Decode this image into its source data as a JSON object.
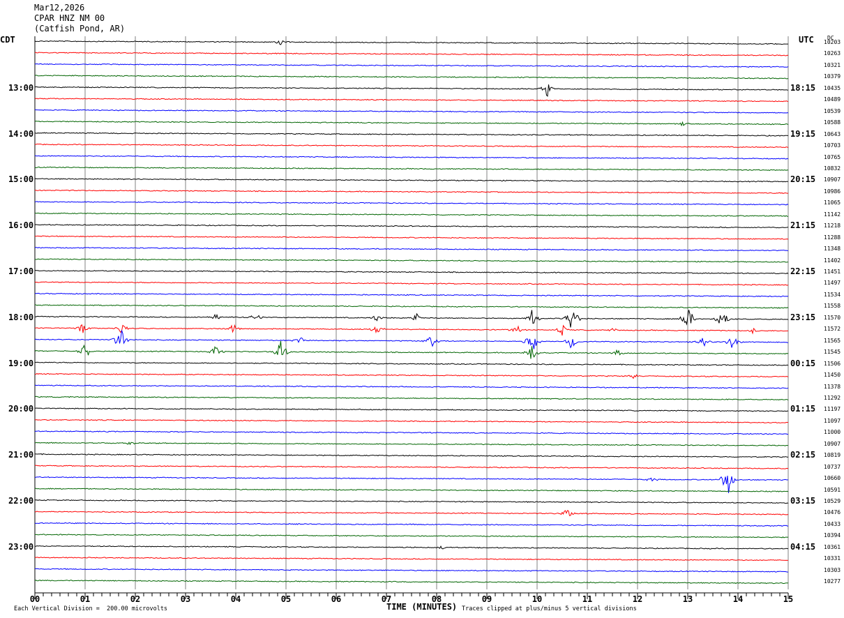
{
  "header": {
    "date": "Mar12,2026",
    "station": "CPAR HNZ NM 00",
    "location": "(Catfish Pond, AR)"
  },
  "left_tz": "CDT",
  "right_tz": "UTC",
  "dc_label": "DC",
  "footer": {
    "vertical_division": "Each Vertical Division =  200.00 microvolts",
    "clip_note": "Traces clipped at plus/minus 5 vertical divisions",
    "xlabel": "TIME (MINUTES)"
  },
  "colors": {
    "black": "#000000",
    "red": "#ff0000",
    "blue": "#0000ff",
    "green": "#006400",
    "grid": "#808080"
  },
  "chart_data": {
    "type": "line",
    "xlabel": "TIME (MINUTES)",
    "xlim": [
      0,
      15
    ],
    "x_ticks": [
      "00",
      "01",
      "02",
      "03",
      "04",
      "05",
      "06",
      "07",
      "08",
      "09",
      "10",
      "11",
      "12",
      "13",
      "14",
      "15"
    ],
    "trace_interval_minutes": 15,
    "trace_color_cycle": [
      "black",
      "red",
      "blue",
      "green"
    ],
    "left_hour_labels": [
      {
        "row": 4,
        "label": "13:00"
      },
      {
        "row": 8,
        "label": "14:00"
      },
      {
        "row": 12,
        "label": "15:00"
      },
      {
        "row": 16,
        "label": "16:00"
      },
      {
        "row": 20,
        "label": "17:00"
      },
      {
        "row": 24,
        "label": "18:00"
      },
      {
        "row": 28,
        "label": "19:00"
      },
      {
        "row": 32,
        "label": "20:00"
      },
      {
        "row": 36,
        "label": "21:00"
      },
      {
        "row": 40,
        "label": "22:00"
      },
      {
        "row": 44,
        "label": "23:00"
      }
    ],
    "right_hour_labels": [
      {
        "row": 4,
        "label": "18:15"
      },
      {
        "row": 8,
        "label": "19:15"
      },
      {
        "row": 12,
        "label": "20:15"
      },
      {
        "row": 16,
        "label": "21:15"
      },
      {
        "row": 20,
        "label": "22:15"
      },
      {
        "row": 24,
        "label": "23:15"
      },
      {
        "row": 28,
        "label": "00:15"
      },
      {
        "row": 32,
        "label": "01:15"
      },
      {
        "row": 36,
        "label": "02:15"
      },
      {
        "row": 40,
        "label": "03:15"
      },
      {
        "row": 44,
        "label": "04:15"
      }
    ],
    "dc_offsets": [
      "10203",
      "10263",
      "10321",
      "10379",
      "10435",
      "10489",
      "10539",
      "10588",
      "10643",
      "10703",
      "10765",
      "10832",
      "10907",
      "10986",
      "11065",
      "11142",
      "11218",
      "11288",
      "11348",
      "11402",
      "11451",
      "11497",
      "11534",
      "11558",
      "11570",
      "11572",
      "11565",
      "11545",
      "11506",
      "11450",
      "11378",
      "11292",
      "11197",
      "11097",
      "11000",
      "10907",
      "10819",
      "10737",
      "10660",
      "10591",
      "10529",
      "10476",
      "10433",
      "10394",
      "10361",
      "10331",
      "10303",
      "10277"
    ],
    "events": [
      {
        "row": 0,
        "minute": 4.9,
        "amplitude": 0.35
      },
      {
        "row": 4,
        "minute": 10.2,
        "amplitude": 0.8
      },
      {
        "row": 7,
        "minute": 12.9,
        "amplitude": 0.25
      },
      {
        "row": 24,
        "minute": 3.6,
        "amplitude": 0.4
      },
      {
        "row": 24,
        "minute": 4.4,
        "amplitude": 0.4
      },
      {
        "row": 24,
        "minute": 6.8,
        "amplitude": 0.35
      },
      {
        "row": 24,
        "minute": 7.6,
        "amplitude": 0.45
      },
      {
        "row": 24,
        "minute": 9.9,
        "amplitude": 0.9
      },
      {
        "row": 24,
        "minute": 10.7,
        "amplitude": 1.3
      },
      {
        "row": 24,
        "minute": 13.0,
        "amplitude": 1.6
      },
      {
        "row": 24,
        "minute": 13.7,
        "amplitude": 1.0
      },
      {
        "row": 25,
        "minute": 0.95,
        "amplitude": 0.6
      },
      {
        "row": 25,
        "minute": 1.7,
        "amplitude": 0.55
      },
      {
        "row": 25,
        "minute": 3.95,
        "amplitude": 0.5
      },
      {
        "row": 25,
        "minute": 6.8,
        "amplitude": 0.45
      },
      {
        "row": 25,
        "minute": 9.6,
        "amplitude": 0.45
      },
      {
        "row": 25,
        "minute": 10.5,
        "amplitude": 0.5
      },
      {
        "row": 25,
        "minute": 11.5,
        "amplitude": 0.35
      },
      {
        "row": 25,
        "minute": 14.3,
        "amplitude": 0.3
      },
      {
        "row": 26,
        "minute": 1.7,
        "amplitude": 1.3
      },
      {
        "row": 26,
        "minute": 5.3,
        "amplitude": 0.5
      },
      {
        "row": 26,
        "minute": 7.9,
        "amplitude": 0.7
      },
      {
        "row": 26,
        "minute": 9.9,
        "amplitude": 1.2
      },
      {
        "row": 26,
        "minute": 10.7,
        "amplitude": 0.9
      },
      {
        "row": 26,
        "minute": 13.3,
        "amplitude": 0.6
      },
      {
        "row": 26,
        "minute": 13.9,
        "amplitude": 0.7
      },
      {
        "row": 27,
        "minute": 1.0,
        "amplitude": 0.9
      },
      {
        "row": 27,
        "minute": 3.6,
        "amplitude": 0.6
      },
      {
        "row": 27,
        "minute": 4.9,
        "amplitude": 1.1
      },
      {
        "row": 27,
        "minute": 9.9,
        "amplitude": 0.9
      },
      {
        "row": 27,
        "minute": 11.6,
        "amplitude": 0.3
      },
      {
        "row": 29,
        "minute": 11.9,
        "amplitude": 0.25
      },
      {
        "row": 35,
        "minute": 1.9,
        "amplitude": 0.2
      },
      {
        "row": 38,
        "minute": 13.8,
        "amplitude": 1.6
      },
      {
        "row": 38,
        "minute": 12.3,
        "amplitude": 0.3
      },
      {
        "row": 41,
        "minute": 10.6,
        "amplitude": 0.6
      },
      {
        "row": 44,
        "minute": 8.1,
        "amplitude": 0.2
      }
    ]
  }
}
